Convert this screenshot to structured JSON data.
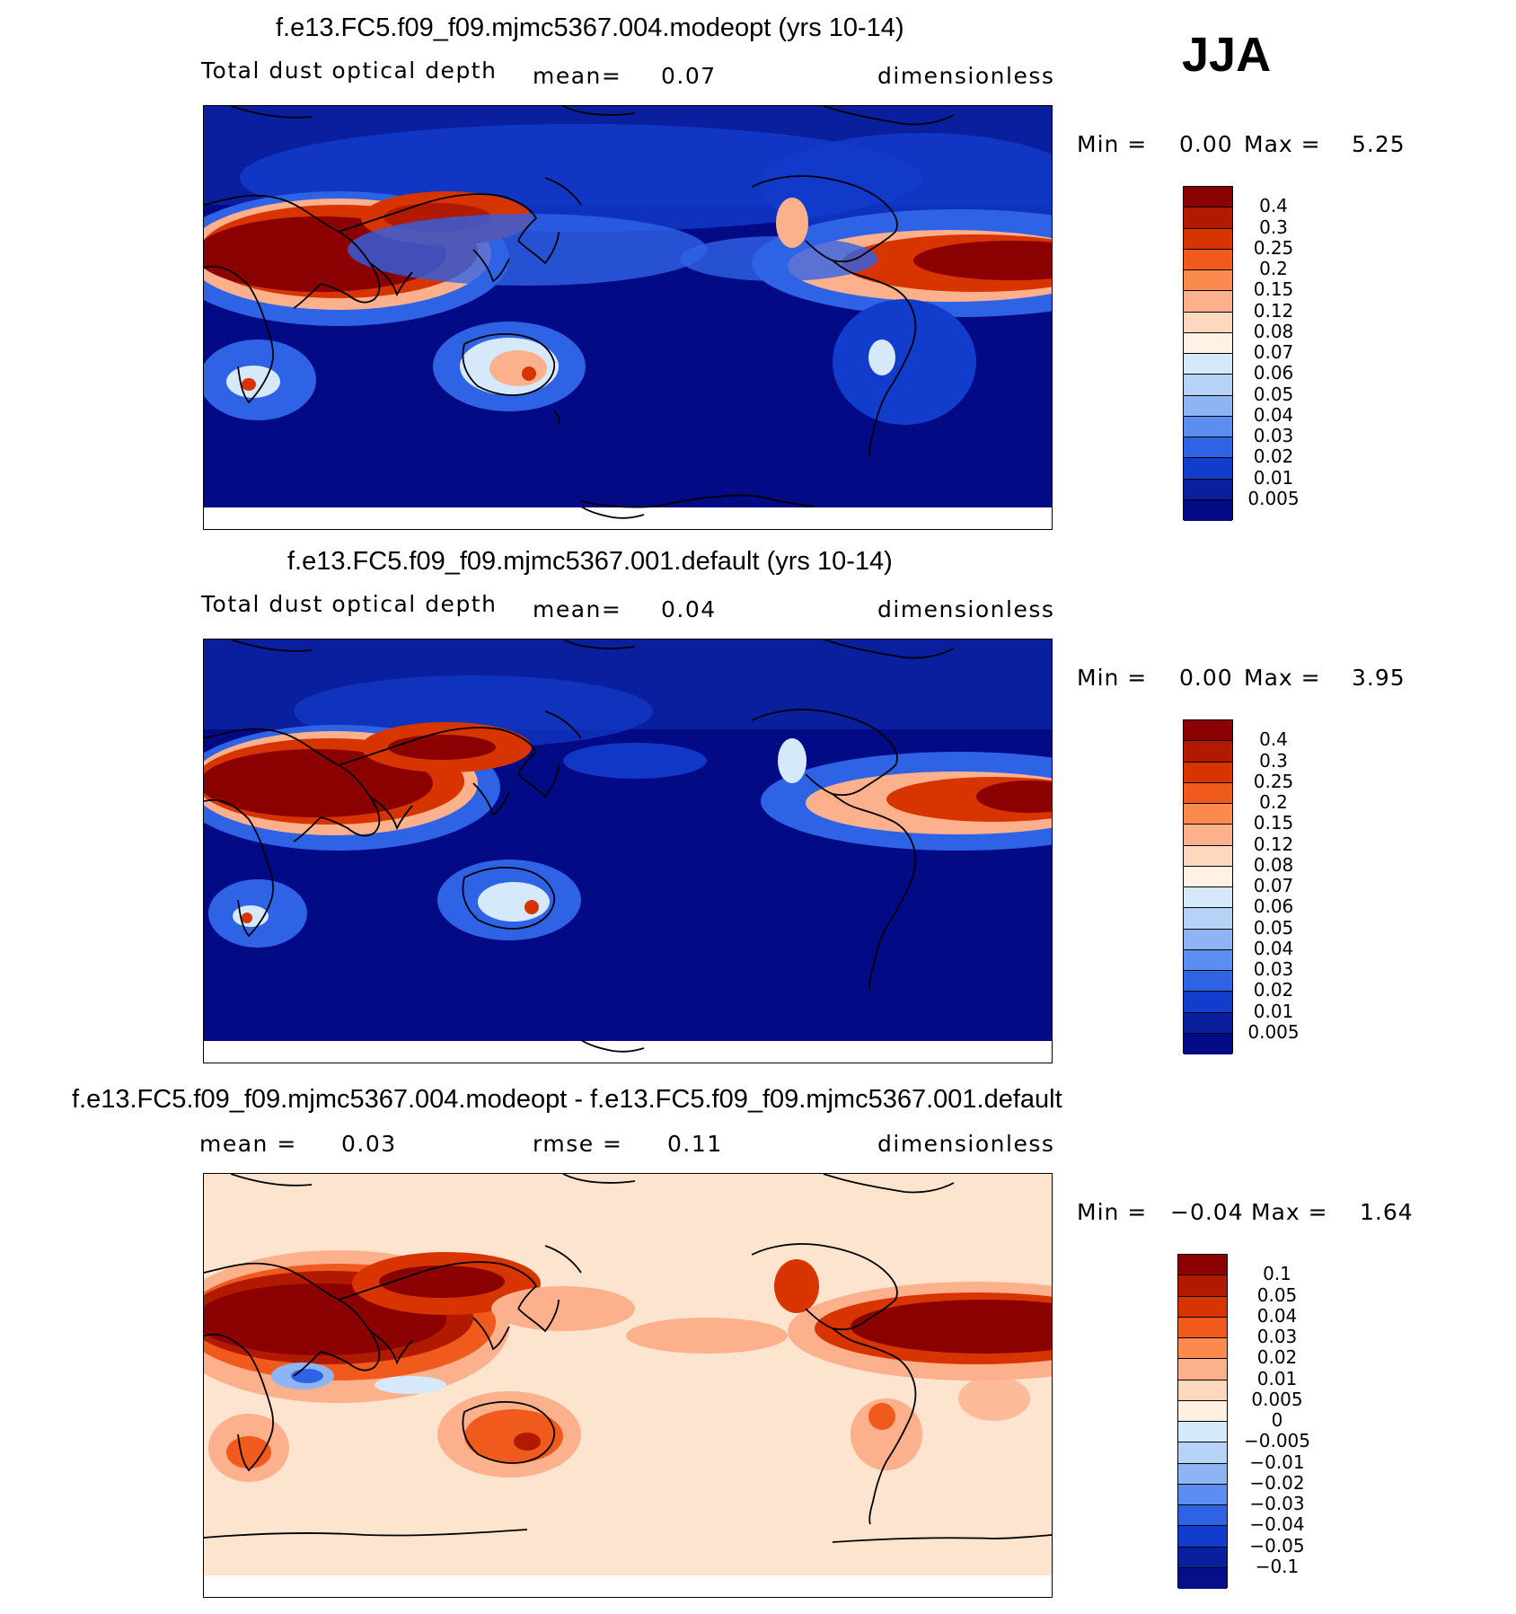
{
  "season": "JJA",
  "panels": [
    {
      "title": "f.e13.FC5.f09_f09.mjmc5367.004.modeopt (yrs 10-14)",
      "variable": "Total dust optical depth",
      "stat1_label": "mean=",
      "stat1_value": "0.07",
      "units": "dimensionless",
      "min_label": "Min =",
      "min_value": "0.00",
      "max_label": "Max =",
      "max_value": "5.25",
      "colorbar_labels": [
        "0.4",
        "0.3",
        "0.25",
        "0.2",
        "0.15",
        "0.12",
        "0.08",
        "0.07",
        "0.06",
        "0.05",
        "0.04",
        "0.03",
        "0.02",
        "0.01",
        "0.005"
      ]
    },
    {
      "title": "f.e13.FC5.f09_f09.mjmc5367.001.default (yrs 10-14)",
      "variable": "Total dust optical depth",
      "stat1_label": "mean=",
      "stat1_value": "0.04",
      "units": "dimensionless",
      "min_label": "Min =",
      "min_value": "0.00",
      "max_label": "Max =",
      "max_value": "3.95",
      "colorbar_labels": [
        "0.4",
        "0.3",
        "0.25",
        "0.2",
        "0.15",
        "0.12",
        "0.08",
        "0.07",
        "0.06",
        "0.05",
        "0.04",
        "0.03",
        "0.02",
        "0.01",
        "0.005"
      ]
    },
    {
      "title": "f.e13.FC5.f09_f09.mjmc5367.004.modeopt - f.e13.FC5.f09_f09.mjmc5367.001.default",
      "stat1_label": "mean =",
      "stat1_value": "0.03",
      "stat2_label": "rmse =",
      "stat2_value": "0.11",
      "units": "dimensionless",
      "min_label": "Min =",
      "min_value": "−0.04",
      "max_label": "Max =",
      "max_value": "1.64",
      "colorbar_labels": [
        "0.1",
        "0.05",
        "0.04",
        "0.03",
        "0.02",
        "0.01",
        "0.005",
        "0",
        "−0.005",
        "−0.01",
        "−0.02",
        "−0.03",
        "−0.04",
        "−0.05",
        "−0.1"
      ]
    }
  ],
  "colors": {
    "seq": [
      "#8b0000",
      "#b21a00",
      "#d83400",
      "#f05a1c",
      "#fb8a4e",
      "#fcb08c",
      "#fdd8be",
      "#fff1e4",
      "#d6e9fa",
      "#b6d2f7",
      "#8fb4f4",
      "#5c8df0",
      "#2f63e6",
      "#123ccc",
      "#0a1f9e",
      "#030a85"
    ],
    "div": [
      "#8b0000",
      "#b21a00",
      "#d83400",
      "#f05a1c",
      "#fb8a4e",
      "#fcb08c",
      "#fdd8be",
      "#fff0e2",
      "#d6e9fa",
      "#b6d2f7",
      "#8fb4f4",
      "#5c8df0",
      "#2f63e6",
      "#123ccc",
      "#0a1f9e",
      "#050f8a"
    ],
    "ocean_low": "#030a85",
    "diff_background": "#fde4cf"
  }
}
